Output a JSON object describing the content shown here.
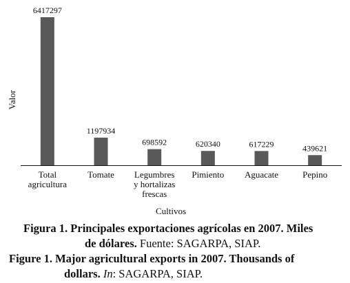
{
  "chart_data": {
    "type": "bar",
    "categories": [
      "Total agricultura",
      "Tomate",
      "Legumbres y hortalizas frescas",
      "Pimiento",
      "Aguacate",
      "Pepino"
    ],
    "category_lines": [
      [
        "Total",
        "agricultura"
      ],
      [
        "Tomate"
      ],
      [
        "Legumbres",
        "y hortalizas",
        "frescas"
      ],
      [
        "Pimiento"
      ],
      [
        "Aguacate"
      ],
      [
        "Pepino"
      ]
    ],
    "values": [
      6417297,
      1197934,
      698592,
      620340,
      617229,
      439621
    ],
    "value_labels": [
      "6417297",
      "1197934",
      "698592",
      "620340",
      "617229",
      "439621"
    ],
    "xlabel": "Cultivos",
    "ylabel": "Valor",
    "ylim": [
      0,
      6417297
    ],
    "bar_color": "#595959",
    "grid": false,
    "legend": "none"
  },
  "caption": {
    "es": {
      "bold_lead": "Figura 1. Principales exportaciones agrícolas en 2007. Miles",
      "bold_cont": "de dólares.",
      "source_label": "Fuente",
      "source_text": ": SAGARPA, SIAP."
    },
    "en": {
      "bold_lead": "Figure 1. Major agricultural exports in 2007. Thousands of",
      "bold_cont": "dollars.",
      "source_label": "In",
      "source_text": ": SAGARPA, SIAP."
    }
  }
}
